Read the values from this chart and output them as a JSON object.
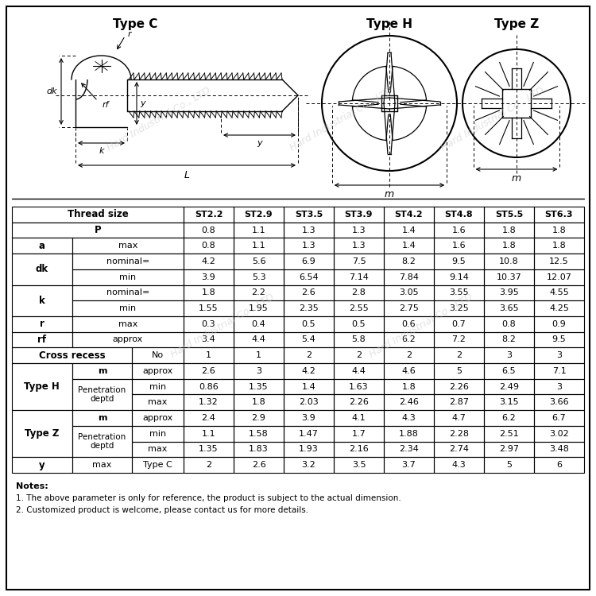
{
  "background_color": "#ffffff",
  "type_c_label": "Type C",
  "type_h_label": "Type H",
  "type_z_label": "Type Z",
  "thread_sizes": [
    "ST2.2",
    "ST2.9",
    "ST3.5",
    "ST3.9",
    "ST4.2",
    "ST4.8",
    "ST5.5",
    "ST6.3"
  ],
  "p_vals": [
    "0.8",
    "1.1",
    "1.3",
    "1.3",
    "1.4",
    "1.6",
    "1.8",
    "1.8"
  ],
  "a_vals": [
    "0.8",
    "1.1",
    "1.3",
    "1.3",
    "1.4",
    "1.6",
    "1.8",
    "1.8"
  ],
  "dk_nom": [
    "4.2",
    "5.6",
    "6.9",
    "7.5",
    "8.2",
    "9.5",
    "10.8",
    "12.5"
  ],
  "dk_min": [
    "3.9",
    "5.3",
    "6.54",
    "7.14",
    "7.84",
    "9.14",
    "10.37",
    "12.07"
  ],
  "k_nom": [
    "1.8",
    "2.2",
    "2.6",
    "2.8",
    "3.05",
    "3.55",
    "3.95",
    "4.55"
  ],
  "k_min": [
    "1.55",
    "1.95",
    "2.35",
    "2.55",
    "2.75",
    "3.25",
    "3.65",
    "4.25"
  ],
  "r_vals": [
    "0.3",
    "0.4",
    "0.5",
    "0.5",
    "0.6",
    "0.7",
    "0.8",
    "0.9"
  ],
  "rf_vals": [
    "3.4",
    "4.4",
    "5.4",
    "5.8",
    "6.2",
    "7.2",
    "8.2",
    "9.5"
  ],
  "cr_vals": [
    "1",
    "1",
    "2",
    "2",
    "2",
    "2",
    "3",
    "3"
  ],
  "h_m": [
    "2.6",
    "3",
    "4.2",
    "4.4",
    "4.6",
    "5",
    "6.5",
    "7.1"
  ],
  "h_min": [
    "0.86",
    "1.35",
    "1.4",
    "1.63",
    "1.8",
    "2.26",
    "2.49",
    "3"
  ],
  "h_max": [
    "1.32",
    "1.8",
    "2.03",
    "2.26",
    "2.46",
    "2.87",
    "3.15",
    "3.66"
  ],
  "z_m": [
    "2.4",
    "2.9",
    "3.9",
    "4.1",
    "4.3",
    "4.7",
    "6.2",
    "6.7"
  ],
  "z_min": [
    "1.1",
    "1.58",
    "1.47",
    "1.7",
    "1.88",
    "2.28",
    "2.51",
    "3.02"
  ],
  "z_max": [
    "1.35",
    "1.83",
    "1.93",
    "2.16",
    "2.34",
    "2.74",
    "2.97",
    "3.48"
  ],
  "y_vals": [
    "2",
    "2.6",
    "3.2",
    "3.5",
    "3.7",
    "4.3",
    "5",
    "6"
  ],
  "notes": [
    "Notes:",
    "1. The above parameter is only for reference, the product is subject to the actual dimension.",
    "2. Customized product is welcome, please contact us for more details."
  ],
  "watermark": "Hard Industrial Co., LTD"
}
